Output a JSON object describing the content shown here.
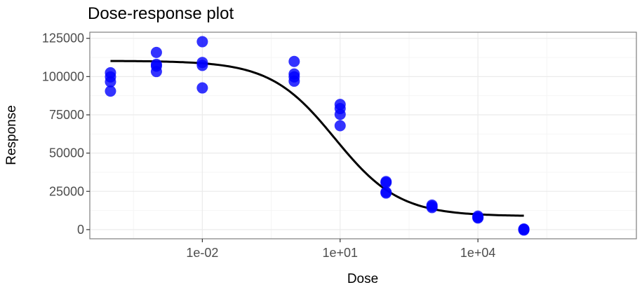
{
  "colors": {
    "point": "#0000ff",
    "curve": "#000000",
    "panel_border": "#7f7f7f",
    "grid_major": "#ebebeb",
    "grid_minor": "#f5f5f5",
    "background": "#ffffff"
  },
  "chart_data": {
    "type": "scatter",
    "title": "Dose-response plot",
    "xlabel": "Dose",
    "ylabel": "Response",
    "x_scale": "log10",
    "xlim": [
      0.0001,
      10000000
    ],
    "ylim": [
      -6000,
      129000
    ],
    "grid": true,
    "legend": "none",
    "x_ticks": [
      {
        "value": 0.01,
        "label": "1e-02"
      },
      {
        "value": 10,
        "label": "1e+01"
      },
      {
        "value": 10000,
        "label": "1e+04"
      }
    ],
    "y_ticks": [
      {
        "value": 0,
        "label": "0"
      },
      {
        "value": 25000,
        "label": "25000"
      },
      {
        "value": 50000,
        "label": "50000"
      },
      {
        "value": 75000,
        "label": "75000"
      },
      {
        "value": 100000,
        "label": "100000"
      },
      {
        "value": 125000,
        "label": "125000"
      }
    ],
    "series": [
      {
        "type": "scatter",
        "points": [
          {
            "x": 0.0001,
            "y": 102500
          },
          {
            "x": 0.0001,
            "y": 99800
          },
          {
            "x": 0.0001,
            "y": 96600
          },
          {
            "x": 0.0001,
            "y": 90500
          },
          {
            "x": 0.001,
            "y": 115800
          },
          {
            "x": 0.001,
            "y": 108000
          },
          {
            "x": 0.001,
            "y": 106800
          },
          {
            "x": 0.001,
            "y": 103300
          },
          {
            "x": 0.01,
            "y": 122800
          },
          {
            "x": 0.01,
            "y": 109200
          },
          {
            "x": 0.01,
            "y": 107300
          },
          {
            "x": 0.01,
            "y": 92600
          },
          {
            "x": 1,
            "y": 109900
          },
          {
            "x": 1,
            "y": 101700
          },
          {
            "x": 1,
            "y": 99800
          },
          {
            "x": 1,
            "y": 97000
          },
          {
            "x": 10,
            "y": 81800
          },
          {
            "x": 10,
            "y": 79100
          },
          {
            "x": 10,
            "y": 75300
          },
          {
            "x": 10,
            "y": 67900
          },
          {
            "x": 100,
            "y": 31400
          },
          {
            "x": 100,
            "y": 30700
          },
          {
            "x": 100,
            "y": 24500
          },
          {
            "x": 100,
            "y": 23900
          },
          {
            "x": 1000,
            "y": 16000
          },
          {
            "x": 1000,
            "y": 15200
          },
          {
            "x": 1000,
            "y": 14400
          },
          {
            "x": 10000,
            "y": 8800
          },
          {
            "x": 10000,
            "y": 8000
          },
          {
            "x": 10000,
            "y": 7600
          },
          {
            "x": 100000,
            "y": 400
          },
          {
            "x": 100000,
            "y": 100
          },
          {
            "x": 100000,
            "y": -300
          }
        ]
      },
      {
        "type": "line",
        "curve": "four-parameter logistic fit",
        "top": 110300,
        "bottom": 8800,
        "ec50": 7.7,
        "hill": 0.62,
        "x_range": [
          0.0001,
          100000
        ]
      }
    ]
  }
}
